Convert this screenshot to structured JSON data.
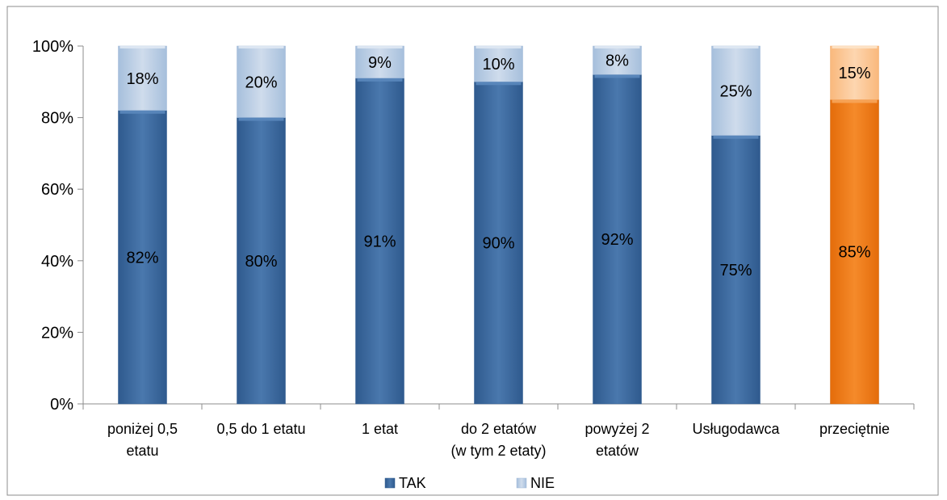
{
  "chart_data": {
    "type": "bar",
    "stacked": true,
    "title": "",
    "xlabel": "",
    "ylabel": "",
    "ylim": [
      0,
      100
    ],
    "y_ticks": [
      "0%",
      "20%",
      "40%",
      "60%",
      "80%",
      "100%"
    ],
    "y_tick_values": [
      0,
      20,
      40,
      60,
      80,
      100
    ],
    "categories": [
      [
        "poniżej 0,5",
        "etatu"
      ],
      [
        "0,5 do 1 etatu"
      ],
      [
        "1 etat"
      ],
      [
        "do 2 etatów",
        "(w tym 2 etaty)"
      ],
      [
        "powyżej 2",
        "etatów"
      ],
      [
        "Usługodawca"
      ],
      [
        "przeciętnie"
      ]
    ],
    "series": [
      {
        "name": "TAK",
        "values": [
          82,
          80,
          91,
          90,
          92,
          75,
          85
        ],
        "labels": [
          "82%",
          "80%",
          "91%",
          "90%",
          "92%",
          "75%",
          "85%"
        ]
      },
      {
        "name": "NIE",
        "values": [
          18,
          20,
          9,
          10,
          8,
          25,
          15
        ],
        "labels": [
          "18%",
          "20%",
          "9%",
          "10%",
          "8%",
          "25%",
          "15%"
        ]
      }
    ],
    "colors": {
      "TAK": "#3e6a9f",
      "NIE": "#b9cde5",
      "highlight_TAK": "#f0780f",
      "highlight_NIE": "#fbc795"
    },
    "highlight_index": 6,
    "grid": false,
    "legend_position": "bottom"
  }
}
